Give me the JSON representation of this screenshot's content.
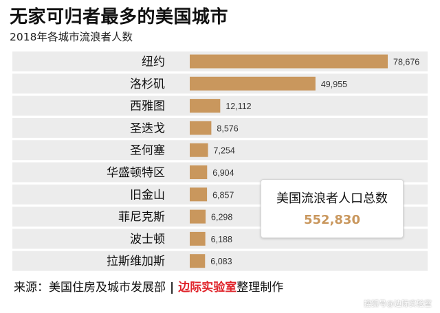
{
  "header": {
    "title": "无家可归者最多的美国城市",
    "subtitle": "2018年各城市流浪者人数"
  },
  "chart_data": {
    "type": "bar",
    "orientation": "horizontal",
    "title": "无家可归者最多的美国城市",
    "subtitle": "2018年各城市流浪者人数",
    "categories": [
      "纽约",
      "洛杉矶",
      "西雅图",
      "圣迭戈",
      "圣何塞",
      "华盛顿特区",
      "旧金山",
      "菲尼克斯",
      "波士顿",
      "拉斯维加斯"
    ],
    "values": [
      78676,
      49955,
      12112,
      8576,
      7254,
      6904,
      6857,
      6298,
      6188,
      6083
    ],
    "value_labels": [
      "78,676",
      "49,955",
      "12,112",
      "8,576",
      "7,254",
      "6,904",
      "6,857",
      "6,298",
      "6,188",
      "6,083"
    ],
    "bar_color": "#c9975d",
    "row_band_color": "#ececec",
    "grid": false,
    "legend": "none"
  },
  "callout": {
    "label": "美国流浪者人口总数",
    "value": "552,830"
  },
  "source": {
    "prefix": "来源：美国住房及城市发展部",
    "separator": "|",
    "brand": "边际实验室",
    "suffix": "整理制作"
  },
  "watermark": "搜狐号@边际实验室"
}
